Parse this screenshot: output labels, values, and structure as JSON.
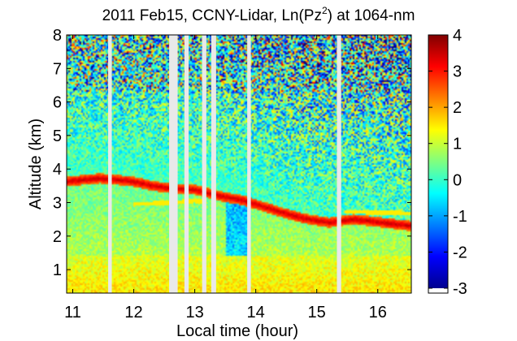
{
  "chart_data": {
    "type": "heatmap",
    "title_main": "2011 Feb15, CCNY-Lidar, Ln(Pz",
    "title_sup": "2",
    "title_tail": ") at 1064-nm",
    "xlabel": "Local time (hour)",
    "ylabel": "Altitude (km)",
    "xlim": [
      10.9,
      16.55
    ],
    "ylim": [
      0.3,
      8
    ],
    "xticks": [
      11,
      12,
      13,
      14,
      15,
      16
    ],
    "xtick_labels": [
      "11",
      "12",
      "13",
      "14",
      "15",
      "16"
    ],
    "yticks": [
      1,
      2,
      3,
      4,
      5,
      6,
      7,
      8
    ],
    "ytick_labels": [
      "1",
      "2",
      "3",
      "4",
      "5",
      "6",
      "7",
      "8"
    ],
    "colorbar": {
      "min": -3,
      "max": 4,
      "ticks": [
        -3,
        -2,
        -1,
        0,
        1,
        2,
        3,
        4
      ],
      "tick_labels": [
        "-3",
        "-2",
        "-1",
        "0",
        "1",
        "2",
        "3",
        "4"
      ],
      "colormap": "jet"
    },
    "data_gaps_hours": [
      [
        11.58,
        11.64
      ],
      [
        12.58,
        12.72
      ],
      [
        12.83,
        12.9
      ],
      [
        13.12,
        13.19
      ],
      [
        13.27,
        13.35
      ],
      [
        13.86,
        13.92
      ],
      [
        15.33,
        15.4
      ]
    ],
    "layer_height_km": [
      {
        "time": 10.9,
        "alt": 3.62
      },
      {
        "time": 11.2,
        "alt": 3.68
      },
      {
        "time": 11.45,
        "alt": 3.72
      },
      {
        "time": 11.7,
        "alt": 3.68
      },
      {
        "time": 12.0,
        "alt": 3.62
      },
      {
        "time": 12.3,
        "alt": 3.5
      },
      {
        "time": 12.6,
        "alt": 3.42
      },
      {
        "time": 13.0,
        "alt": 3.38
      },
      {
        "time": 13.4,
        "alt": 3.2
      },
      {
        "time": 13.8,
        "alt": 3.06
      },
      {
        "time": 14.0,
        "alt": 2.95
      },
      {
        "time": 14.4,
        "alt": 2.72
      },
      {
        "time": 14.8,
        "alt": 2.52
      },
      {
        "time": 15.2,
        "alt": 2.4
      },
      {
        "time": 15.6,
        "alt": 2.5
      },
      {
        "time": 16.0,
        "alt": 2.42
      },
      {
        "time": 16.3,
        "alt": 2.35
      },
      {
        "time": 16.55,
        "alt": 2.3
      }
    ],
    "secondary_layer_km": [
      {
        "time": 12.0,
        "alt": 2.95
      },
      {
        "time": 12.6,
        "alt": 3.0
      },
      {
        "time": 13.0,
        "alt": 3.05
      },
      {
        "time": 15.5,
        "alt": 2.72
      },
      {
        "time": 16.55,
        "alt": 2.68
      }
    ],
    "boundary_layer_top_km": 1.4
  }
}
